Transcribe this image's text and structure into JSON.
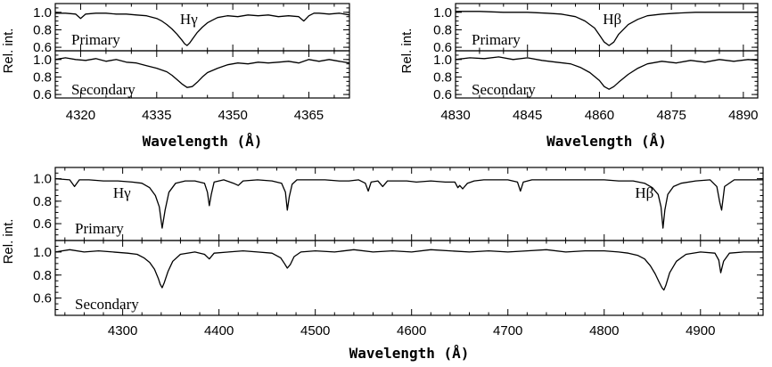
{
  "figure": {
    "background": "#ffffff",
    "line_color": "#000000"
  },
  "chart_data": [
    {
      "id": "top-left",
      "type": "line",
      "xlabel": "Wavelength (Å)",
      "ylabel": "Rel. int.",
      "xlim": [
        4315,
        4373
      ],
      "xticks": [
        4320,
        4335,
        4350,
        4365
      ],
      "xminor_step": 5,
      "line_label": "Hγ",
      "line_center": 4341,
      "subpanels": [
        {
          "name": "Primary",
          "ylim": [
            0.56,
            1.1
          ],
          "yticks": [
            0.6,
            0.8,
            1.0
          ],
          "yticklabels": [
            "0.6",
            "0.8",
            "1.0"
          ],
          "series": {
            "x": [
              4315,
              4317,
              4319,
              4320,
              4321,
              4323,
              4325,
              4327,
              4329,
              4331,
              4333,
              4335,
              4336,
              4337,
              4338,
              4339,
              4340,
              4340.5,
              4341,
              4341.5,
              4342,
              4343,
              4344,
              4345,
              4346,
              4347,
              4349,
              4351,
              4353,
              4355,
              4357,
              4359,
              4361,
              4363,
              4364,
              4365,
              4366,
              4367,
              4369,
              4371,
              4373
            ],
            "y": [
              0.99,
              0.99,
              0.98,
              0.93,
              0.98,
              0.99,
              0.99,
              0.98,
              0.98,
              0.97,
              0.96,
              0.93,
              0.9,
              0.86,
              0.81,
              0.75,
              0.68,
              0.64,
              0.62,
              0.65,
              0.69,
              0.77,
              0.83,
              0.88,
              0.91,
              0.94,
              0.96,
              0.95,
              0.97,
              0.96,
              0.97,
              0.95,
              0.96,
              0.95,
              0.9,
              0.96,
              0.99,
              0.99,
              0.98,
              0.99,
              0.97
            ]
          }
        },
        {
          "name": "Secondary",
          "ylim": [
            0.56,
            1.1
          ],
          "yticks": [
            0.6,
            0.8,
            1.0
          ],
          "yticklabels": [
            "0.6",
            "0.8",
            "1.0"
          ],
          "series": {
            "x": [
              4315,
              4317,
              4319,
              4321,
              4323,
              4325,
              4327,
              4329,
              4331,
              4333,
              4335,
              4337,
              4338,
              4339,
              4340,
              4341,
              4342,
              4343,
              4344,
              4345,
              4347,
              4349,
              4351,
              4353,
              4355,
              4357,
              4359,
              4361,
              4363,
              4365,
              4367,
              4369,
              4371,
              4373
            ],
            "y": [
              1.0,
              1.02,
              1.0,
              0.99,
              1.01,
              0.98,
              1.0,
              0.97,
              0.96,
              0.93,
              0.9,
              0.86,
              0.82,
              0.77,
              0.72,
              0.68,
              0.69,
              0.74,
              0.8,
              0.85,
              0.9,
              0.94,
              0.96,
              0.95,
              0.97,
              0.96,
              0.97,
              0.98,
              0.96,
              1.0,
              0.98,
              1.0,
              0.98,
              0.96
            ]
          }
        }
      ]
    },
    {
      "id": "top-right",
      "type": "line",
      "xlabel": "Wavelength (Å)",
      "ylabel": "Rel. int.",
      "xlim": [
        4830,
        4893
      ],
      "xticks": [
        4830,
        4845,
        4860,
        4875,
        4890
      ],
      "xminor_step": 5,
      "line_label": "Hβ",
      "line_center": 4862,
      "subpanels": [
        {
          "name": "Primary",
          "ylim": [
            0.56,
            1.1
          ],
          "yticks": [
            0.6,
            0.8,
            1.0
          ],
          "yticklabels": [
            "0.6",
            "0.8",
            "1.0"
          ],
          "series": {
            "x": [
              4830,
              4835,
              4840,
              4845,
              4849,
              4852,
              4855,
              4857,
              4859,
              4860,
              4861,
              4862,
              4863,
              4864,
              4866,
              4868,
              4870,
              4873,
              4876,
              4880,
              4885,
              4890,
              4893
            ],
            "y": [
              1.01,
              1.01,
              1.0,
              1.0,
              0.99,
              0.98,
              0.95,
              0.9,
              0.82,
              0.74,
              0.66,
              0.62,
              0.66,
              0.75,
              0.86,
              0.92,
              0.96,
              0.98,
              0.99,
              1.0,
              1.0,
              1.0,
              1.0
            ]
          }
        },
        {
          "name": "Secondary",
          "ylim": [
            0.56,
            1.1
          ],
          "yticks": [
            0.6,
            0.8,
            1.0
          ],
          "yticklabels": [
            "0.6",
            "0.8",
            "1.0"
          ],
          "series": {
            "x": [
              4830,
              4833,
              4836,
              4839,
              4842,
              4845,
              4848,
              4851,
              4854,
              4856,
              4858,
              4860,
              4861,
              4862,
              4863,
              4864,
              4866,
              4868,
              4870,
              4873,
              4876,
              4879,
              4882,
              4885,
              4888,
              4891,
              4893
            ],
            "y": [
              1.0,
              1.02,
              1.01,
              1.03,
              1.0,
              1.02,
              0.99,
              0.97,
              0.95,
              0.91,
              0.85,
              0.76,
              0.69,
              0.66,
              0.69,
              0.74,
              0.83,
              0.9,
              0.95,
              0.98,
              0.96,
              0.99,
              0.97,
              1.0,
              0.98,
              1.0,
              0.99
            ]
          }
        }
      ]
    },
    {
      "id": "bottom",
      "type": "line",
      "xlabel": "Wavelength (Å)",
      "ylabel": "Rel. int.",
      "xlim": [
        4230,
        4965
      ],
      "xticks": [
        4300,
        4400,
        4500,
        4600,
        4700,
        4800,
        4900
      ],
      "xminor_step": 20,
      "subpanels": [
        {
          "name": "Primary",
          "ylim": [
            0.45,
            1.1
          ],
          "yticks": [
            0.6,
            0.8,
            1.0
          ],
          "yticklabels": [
            "0.6",
            "0.8",
            "1.0"
          ],
          "line_labels": [
            {
              "text": "Hγ",
              "x": 4290,
              "y": 0.83
            },
            {
              "text": "Hβ",
              "x": 4832,
              "y": 0.83
            }
          ],
          "series": {
            "x": [
              4230,
              4245,
              4250,
              4255,
              4265,
              4280,
              4295,
              4310,
              4320,
              4328,
              4334,
              4338,
              4341,
              4344,
              4348,
              4355,
              4365,
              4375,
              4385,
              4388,
              4390,
              4392,
              4395,
              4405,
              4415,
              4420,
              4425,
              4440,
              4455,
              4465,
              4469,
              4471,
              4473,
              4476,
              4481,
              4495,
              4510,
              4525,
              4535,
              4545,
              4552,
              4555,
              4558,
              4565,
              4570,
              4575,
              4585,
              4595,
              4605,
              4620,
              4635,
              4645,
              4648,
              4650,
              4653,
              4658,
              4665,
              4675,
              4690,
              4700,
              4710,
              4713,
              4716,
              4725,
              4740,
              4760,
              4780,
              4800,
              4815,
              4830,
              4842,
              4850,
              4856,
              4859,
              4861,
              4863,
              4866,
              4872,
              4880,
              4895,
              4910,
              4917,
              4920,
              4922,
              4925,
              4935,
              4950,
              4965
            ],
            "y": [
              1.0,
              0.99,
              0.93,
              0.99,
              0.99,
              0.98,
              0.98,
              0.97,
              0.96,
              0.92,
              0.85,
              0.75,
              0.56,
              0.72,
              0.88,
              0.96,
              0.98,
              0.98,
              0.96,
              0.88,
              0.76,
              0.86,
              0.97,
              0.99,
              0.96,
              0.94,
              0.98,
              0.99,
              0.98,
              0.96,
              0.88,
              0.72,
              0.84,
              0.95,
              0.99,
              0.99,
              0.99,
              0.98,
              0.98,
              0.99,
              0.96,
              0.89,
              0.97,
              0.98,
              0.93,
              0.98,
              0.98,
              0.98,
              0.97,
              0.98,
              0.97,
              0.97,
              0.92,
              0.94,
              0.91,
              0.96,
              0.98,
              0.99,
              0.99,
              0.99,
              0.97,
              0.89,
              0.97,
              0.99,
              0.99,
              0.99,
              0.99,
              0.99,
              0.98,
              0.98,
              0.96,
              0.92,
              0.86,
              0.75,
              0.56,
              0.72,
              0.86,
              0.93,
              0.96,
              0.98,
              0.99,
              0.93,
              0.79,
              0.72,
              0.93,
              0.99,
              0.99,
              0.99
            ]
          }
        },
        {
          "name": "Secondary",
          "ylim": [
            0.45,
            1.1
          ],
          "yticks": [
            0.6,
            0.8,
            1.0
          ],
          "yticklabels": [
            "0.6",
            "0.8",
            "1.0"
          ],
          "series": {
            "x": [
              4230,
              4245,
              4260,
              4275,
              4290,
              4305,
              4315,
              4322,
              4328,
              4333,
              4337,
              4339,
              4341,
              4343,
              4347,
              4352,
              4360,
              4375,
              4385,
              4390,
              4395,
              4410,
              4425,
              4440,
              4455,
              4464,
              4468,
              4471,
              4474,
              4478,
              4485,
              4500,
              4520,
              4540,
              4560,
              4580,
              4600,
              4620,
              4640,
              4660,
              4680,
              4700,
              4720,
              4740,
              4760,
              4780,
              4800,
              4815,
              4825,
              4835,
              4842,
              4848,
              4853,
              4857,
              4860,
              4862,
              4864,
              4868,
              4875,
              4885,
              4900,
              4915,
              4919,
              4921,
              4924,
              4930,
              4945,
              4965
            ],
            "y": [
              1.0,
              1.02,
              1.0,
              1.01,
              1.0,
              0.99,
              0.98,
              0.95,
              0.91,
              0.85,
              0.77,
              0.72,
              0.69,
              0.73,
              0.83,
              0.92,
              0.98,
              1.0,
              0.98,
              0.94,
              0.99,
              1.0,
              1.01,
              1.0,
              0.99,
              0.95,
              0.9,
              0.86,
              0.89,
              0.96,
              1.0,
              1.01,
              1.0,
              1.02,
              1.0,
              1.01,
              1.0,
              1.02,
              1.01,
              1.0,
              1.01,
              1.0,
              1.01,
              1.02,
              1.0,
              1.01,
              1.01,
              1.0,
              0.99,
              0.97,
              0.94,
              0.88,
              0.81,
              0.74,
              0.69,
              0.67,
              0.71,
              0.82,
              0.92,
              0.98,
              1.0,
              0.99,
              0.93,
              0.82,
              0.92,
              0.99,
              1.0,
              1.0
            ]
          }
        }
      ]
    }
  ]
}
